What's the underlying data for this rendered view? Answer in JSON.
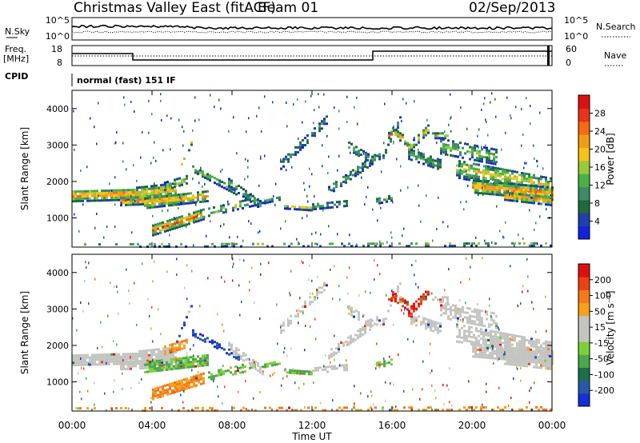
{
  "header": {
    "title": "Christmas Valley East (fitACF)",
    "beam": "Beam 01",
    "date": "02/Sep/2013"
  },
  "top_panels": {
    "nsky_label": "N.Sky",
    "nsearch_label": "N.Search",
    "nsky_ticks": [
      "10^5",
      "10^0"
    ],
    "nsearch_ticks": [
      "10^5",
      "10^0"
    ],
    "freq_label": "Freq.",
    "freq_unit": "[MHz]",
    "freq_ticks": [
      "18",
      "8"
    ],
    "nave_label": "Nave",
    "nave_ticks": [
      "60",
      "0"
    ],
    "cpid_label": "CPID",
    "cpid_value": "normal (fast) 151 IF"
  },
  "chart_data": [
    {
      "type": "heatmap",
      "name": "power",
      "ylabel": "Slant Range [km]",
      "yticks": [
        "4000",
        "3000",
        "2000",
        "1000"
      ],
      "colorbar_label": "Power [dB]",
      "colorbar_ticks": [
        "28",
        "24",
        "20",
        "16",
        "12",
        "8",
        "4"
      ],
      "colors": [
        "#0f23dc",
        "#1f3fae",
        "#1e6a3c",
        "#3b8b63",
        "#4bb046",
        "#98c93a",
        "#f5c21a",
        "#f59a16",
        "#f56a12",
        "#e8321a",
        "#de0f0f"
      ]
    },
    {
      "type": "heatmap",
      "name": "velocity",
      "ylabel": "Slant Range [km]",
      "yticks": [
        "4000",
        "3000",
        "2000",
        "1000"
      ],
      "colorbar_label": "Velocity [m s⁻¹]",
      "colorbar_ticks": [
        "200",
        "100",
        "50",
        "15",
        "-15",
        "-50",
        "-100",
        "-200"
      ],
      "colors": [
        "#1630d8",
        "#2b57a8",
        "#1d6e4a",
        "#4aa84a",
        "#7cd038",
        "#c4c4c0",
        "#c4c4c0",
        "#f5a21a",
        "#f5781a",
        "#ee4016",
        "#e00f0f"
      ]
    }
  ],
  "x_axis": {
    "label": "Time UT",
    "ticks": [
      "00:00",
      "04:00",
      "08:00",
      "12:00",
      "16:00",
      "20:00",
      "00:00"
    ]
  }
}
